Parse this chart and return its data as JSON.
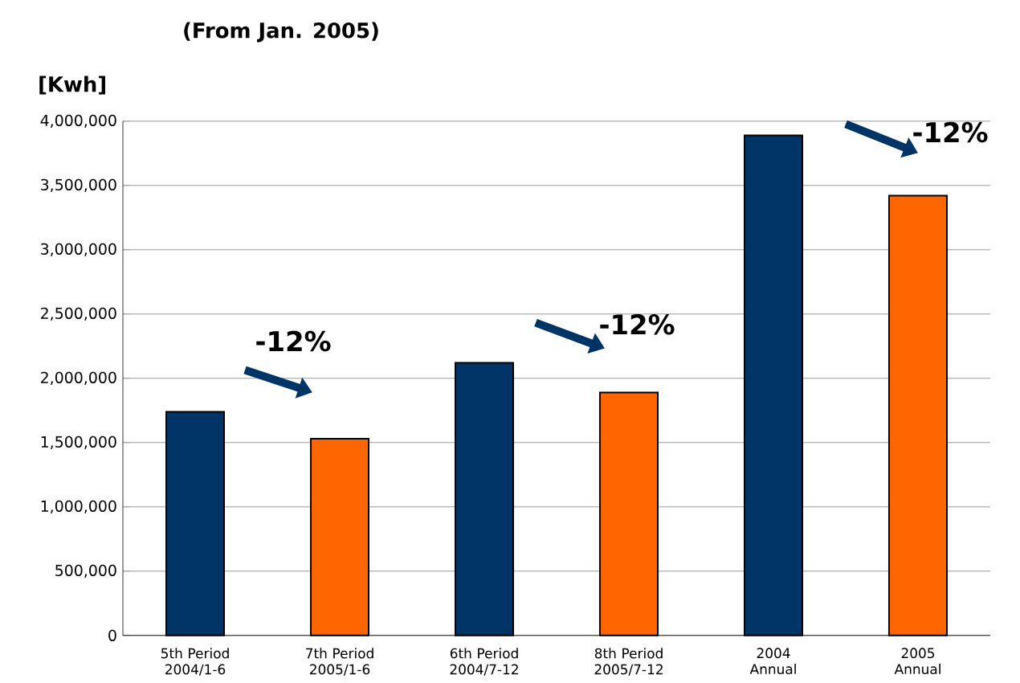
{
  "chart_data": {
    "type": "bar",
    "title": "(From Jan. 2005)",
    "ylabel": "[Kwh]",
    "categories": [
      "5th Period 2004/1-6",
      "7th Period 2005/1-6",
      "6th Period 2004/7-12",
      "8th Period 2005/7-12",
      "2004 Annual",
      "2005 Annual"
    ],
    "values": [
      1740000,
      1530000,
      2120000,
      1890000,
      3890000,
      3420000
    ],
    "colors": [
      "#003366",
      "#ff6600",
      "#003366",
      "#ff6600",
      "#003366",
      "#ff6600"
    ],
    "ylim": [
      0,
      4000000
    ],
    "yticks": [
      {
        "value": 0,
        "label": "0"
      },
      {
        "value": 500000,
        "label": "500,000"
      },
      {
        "value": 1000000,
        "label": "1,000,000"
      },
      {
        "value": 1500000,
        "label": "1,500,000"
      },
      {
        "value": 2000000,
        "label": "2,000,000"
      },
      {
        "value": 2500000,
        "label": "2,500,000"
      },
      {
        "value": 3000000,
        "label": "3,000,000"
      },
      {
        "value": 3500000,
        "label": "3,500,000"
      },
      {
        "value": 4000000,
        "label": "4,000,000"
      }
    ],
    "grid": "y",
    "annotations": [
      "-12%",
      "-12%",
      "-12%"
    ]
  }
}
